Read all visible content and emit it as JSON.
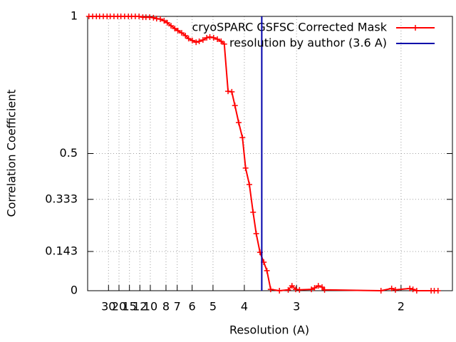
{
  "chart_data": {
    "type": "line",
    "xlabel": "Resolution (A)",
    "ylabel": "Correlation Coefficient",
    "xlim": [
      0,
      0.582
    ],
    "ylim": [
      0,
      1
    ],
    "xticks": [
      {
        "value": 0.0333,
        "label": "30"
      },
      {
        "value": 0.05,
        "label": "20"
      },
      {
        "value": 0.0667,
        "label": "15"
      },
      {
        "value": 0.0833,
        "label": "12"
      },
      {
        "value": 0.1,
        "label": "10"
      },
      {
        "value": 0.125,
        "label": "8"
      },
      {
        "value": 0.1429,
        "label": "7"
      },
      {
        "value": 0.1667,
        "label": "6"
      },
      {
        "value": 0.2,
        "label": "5"
      },
      {
        "value": 0.25,
        "label": "4"
      },
      {
        "value": 0.3333,
        "label": "3"
      },
      {
        "value": 0.5,
        "label": "2"
      }
    ],
    "yticks": [
      0,
      0.143,
      0.333,
      0.5,
      1
    ],
    "grid": true,
    "legend": "top-right",
    "series": [
      {
        "name": "cryoSPARC GSFSC Corrected Mask",
        "color": "#ff0000",
        "marker": "+",
        "x": [
          0.002,
          0.008,
          0.014,
          0.019,
          0.025,
          0.031,
          0.036,
          0.042,
          0.048,
          0.053,
          0.059,
          0.065,
          0.07,
          0.076,
          0.082,
          0.088,
          0.093,
          0.099,
          0.105,
          0.11,
          0.116,
          0.122,
          0.127,
          0.133,
          0.139,
          0.144,
          0.15,
          0.156,
          0.161,
          0.167,
          0.173,
          0.178,
          0.184,
          0.19,
          0.195,
          0.201,
          0.207,
          0.213,
          0.218,
          0.224,
          0.23,
          0.235,
          0.241,
          0.247,
          0.252,
          0.258,
          0.264,
          0.269,
          0.275,
          0.281,
          0.286,
          0.292,
          0.306,
          0.32,
          0.326,
          0.332,
          0.338,
          0.357,
          0.362,
          0.368,
          0.374,
          0.378,
          0.468,
          0.485,
          0.491,
          0.514,
          0.519,
          0.525,
          0.548,
          0.553,
          0.559
        ],
        "values": [
          1,
          1,
          1,
          1,
          1,
          1,
          1,
          1,
          1,
          1,
          1,
          1,
          1,
          1,
          1,
          0.997,
          0.997,
          0.997,
          0.995,
          0.992,
          0.99,
          0.984,
          0.977,
          0.966,
          0.956,
          0.948,
          0.94,
          0.93,
          0.919,
          0.912,
          0.906,
          0.909,
          0.914,
          0.922,
          0.925,
          0.922,
          0.917,
          0.909,
          0.899,
          0.727,
          0.725,
          0.675,
          0.613,
          0.558,
          0.447,
          0.387,
          0.286,
          0.208,
          0.14,
          0.104,
          0.073,
          0.005,
          0,
          0.003,
          0.018,
          0.005,
          0.003,
          0.005,
          0.01,
          0.018,
          0.013,
          0.003,
          0,
          0.008,
          0.003,
          0.008,
          0.005,
          0,
          0,
          0,
          0
        ]
      },
      {
        "name": "resolution by author (3.6 A)",
        "color": "#0000aa",
        "x": [
          0.2778,
          0.2778
        ],
        "values": [
          0,
          1
        ]
      }
    ]
  }
}
